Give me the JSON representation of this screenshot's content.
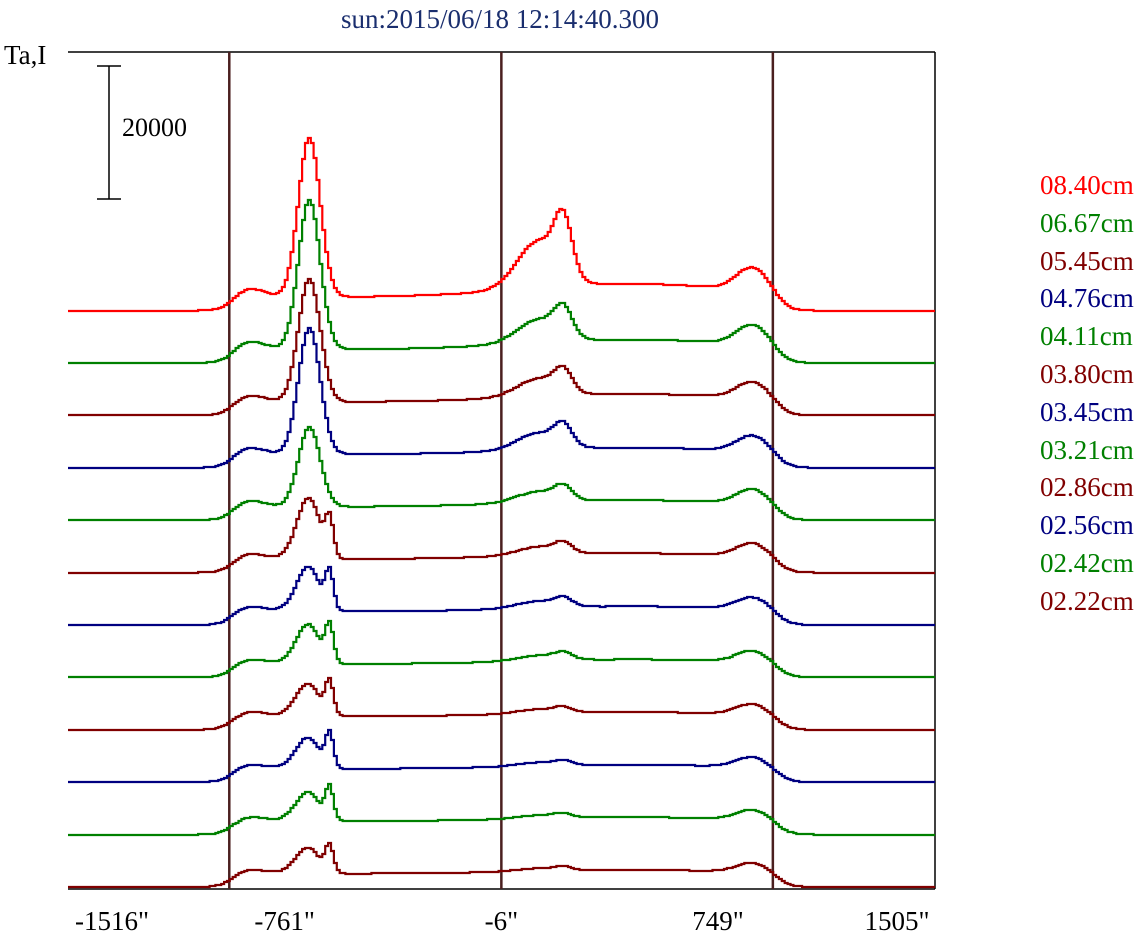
{
  "chart_data": {
    "type": "line",
    "title": "sun:2015/06/18 12:14:40.300",
    "ylabel": "Ta,I",
    "xlabel": "",
    "xlim": [
      -1516,
      1505
    ],
    "x_ticks": [
      "-1516\"",
      "-761\"",
      "-6\"",
      "749\"",
      "1505\""
    ],
    "vertical_marker_x_arcsec": [
      -954,
      -6,
      940
    ],
    "scale_bar_label": "20000",
    "scale_bar_value": 20000,
    "plot_frame": "top-right-bottom",
    "legend_position": "right",
    "series": [
      {
        "name": "08.40cm",
        "color": "#ff0000",
        "offset_units": 11,
        "peak1": 24000,
        "peak1b": 0,
        "peak2": 13000,
        "peak3": 3500,
        "shoulder": 1500,
        "plateau": 2000
      },
      {
        "name": "06.67cm",
        "color": "#008000",
        "offset_units": 10,
        "peak1": 22500,
        "peak1b": 0,
        "peak2": 6500,
        "peak3": 3000,
        "shoulder": 1500,
        "plateau": 1500
      },
      {
        "name": "05.45cm",
        "color": "#800000",
        "offset_units": 9,
        "peak1": 18500,
        "peak1b": 0,
        "peak2": 5000,
        "peak3": 2500,
        "shoulder": 1200,
        "plateau": 1200
      },
      {
        "name": "04.76cm",
        "color": "#000080",
        "offset_units": 8,
        "peak1": 19000,
        "peak1b": 0,
        "peak2": 4700,
        "peak3": 2400,
        "shoulder": 1200,
        "plateau": 1000
      },
      {
        "name": "04.11cm",
        "color": "#008000",
        "offset_units": 7,
        "peak1": 12000,
        "peak1b": 0,
        "peak2": 3000,
        "peak3": 2200,
        "shoulder": 1100,
        "plateau": 1000
      },
      {
        "name": "03.80cm",
        "color": "#800000",
        "offset_units": 6,
        "peak1": 7500,
        "peak1b": 5500,
        "peak2": 2300,
        "peak3": 2000,
        "shoulder": 1000,
        "plateau": 900
      },
      {
        "name": "03.45cm",
        "color": "#000080",
        "offset_units": 5,
        "peak1": 5000,
        "peak1b": 5500,
        "peak2": 1900,
        "peak3": 1800,
        "shoulder": 1000,
        "plateau": 800
      },
      {
        "name": "03.21cm",
        "color": "#008000",
        "offset_units": 4,
        "peak1": 4200,
        "peak1b": 5500,
        "peak2": 1500,
        "peak3": 1700,
        "shoulder": 900,
        "plateau": 700
      },
      {
        "name": "02.86cm",
        "color": "#800000",
        "offset_units": 3,
        "peak1": 3300,
        "peak1b": 5000,
        "peak2": 1200,
        "peak3": 1600,
        "shoulder": 900,
        "plateau": 650
      },
      {
        "name": "02.56cm",
        "color": "#000080",
        "offset_units": 2,
        "peak1": 3100,
        "peak1b": 5000,
        "peak2": 1000,
        "peak3": 1500,
        "shoulder": 850,
        "plateau": 600
      },
      {
        "name": "02.42cm",
        "color": "#008000",
        "offset_units": 1,
        "peak1": 2800,
        "peak1b": 4800,
        "peak2": 900,
        "peak3": 1500,
        "shoulder": 800,
        "plateau": 600
      },
      {
        "name": "02.22cm",
        "color": "#800000",
        "offset_units": 0,
        "peak1": 2600,
        "peak1b": 4000,
        "peak2": 800,
        "peak3": 1400,
        "shoulder": 800,
        "plateau": 550
      }
    ]
  }
}
